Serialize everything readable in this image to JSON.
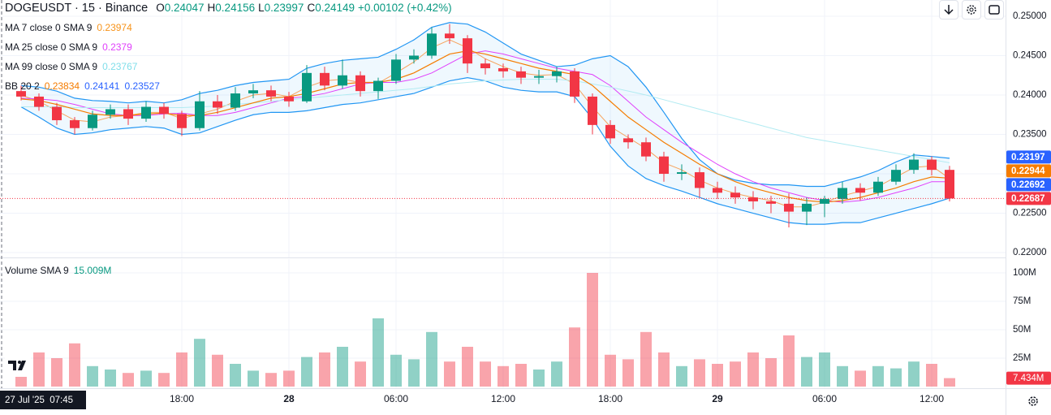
{
  "chart_data": {
    "type": "candlestick",
    "title": "DOGEUSDT · 15 · Binance",
    "header": [
      {
        "label": "O",
        "value": 0.24047
      },
      {
        "label": "H",
        "value": 0.24156
      },
      {
        "label": "L",
        "value": 0.23997
      },
      {
        "label": "C",
        "value": 0.24149
      }
    ],
    "change": "+0.00102 (+0.42%)",
    "crosshair_label": "27 Jul '25  07:45",
    "up_color": "#089981",
    "down_color": "#f23645",
    "grid": true,
    "categories": [
      null,
      null,
      null,
      null,
      null,
      null,
      null,
      null,
      null,
      "18:00",
      null,
      null,
      null,
      null,
      null,
      "28",
      null,
      null,
      null,
      null,
      null,
      "06:00",
      null,
      null,
      null,
      null,
      null,
      "12:00",
      null,
      null,
      null,
      null,
      null,
      "18:00",
      null,
      null,
      null,
      null,
      null,
      "29",
      null,
      null,
      null,
      null,
      null,
      "06:00",
      null,
      null,
      null,
      null,
      null,
      "12:00",
      null
    ],
    "open": [
      0.2405,
      0.2398,
      0.2385,
      0.2368,
      0.2358,
      0.2375,
      0.2382,
      0.237,
      0.2385,
      0.2376,
      0.2358,
      0.2392,
      0.2384,
      0.2402,
      0.2406,
      0.2398,
      0.2392,
      0.2428,
      0.2412,
      0.2425,
      0.2405,
      0.2418,
      0.2445,
      0.245,
      0.2478,
      0.2472,
      0.244,
      0.2434,
      0.243,
      0.2422,
      0.2424,
      0.243,
      0.2398,
      0.2362,
      0.2345,
      0.234,
      0.2322,
      0.23,
      0.2302,
      0.2282,
      0.2276,
      0.227,
      0.2265,
      0.2262,
      0.2252,
      0.2262,
      0.2268,
      0.2282,
      0.2276,
      0.229,
      0.2305,
      0.2318,
      0.2305
    ],
    "high": [
      0.2412,
      0.2402,
      0.239,
      0.2372,
      0.238,
      0.2388,
      0.2388,
      0.2392,
      0.239,
      0.238,
      0.2405,
      0.24,
      0.241,
      0.2414,
      0.2412,
      0.2404,
      0.2438,
      0.2436,
      0.2445,
      0.243,
      0.2422,
      0.2452,
      0.2458,
      0.2486,
      0.249,
      0.2476,
      0.2446,
      0.244,
      0.2436,
      0.2432,
      0.2436,
      0.2434,
      0.2402,
      0.2368,
      0.235,
      0.2346,
      0.2328,
      0.2312,
      0.2308,
      0.229,
      0.2284,
      0.2278,
      0.2272,
      0.2275,
      0.227,
      0.2272,
      0.229,
      0.2288,
      0.2296,
      0.2312,
      0.2326,
      0.2322,
      0.231
    ],
    "low": [
      0.2393,
      0.238,
      0.2362,
      0.235,
      0.2355,
      0.237,
      0.2362,
      0.2366,
      0.237,
      0.2348,
      0.2355,
      0.2376,
      0.238,
      0.2396,
      0.2392,
      0.2385,
      0.239,
      0.2406,
      0.2408,
      0.2398,
      0.2395,
      0.2414,
      0.244,
      0.2446,
      0.2465,
      0.2428,
      0.2426,
      0.2422,
      0.2414,
      0.2414,
      0.2416,
      0.239,
      0.235,
      0.2338,
      0.2332,
      0.2316,
      0.229,
      0.2292,
      0.227,
      0.2268,
      0.2262,
      0.2255,
      0.225,
      0.2232,
      0.2235,
      0.2245,
      0.2262,
      0.2266,
      0.2272,
      0.2286,
      0.23,
      0.2298,
      0.2265
    ],
    "close": [
      0.2398,
      0.2385,
      0.2368,
      0.2358,
      0.2375,
      0.2382,
      0.237,
      0.2385,
      0.2376,
      0.2358,
      0.2392,
      0.2384,
      0.2402,
      0.2406,
      0.2398,
      0.2392,
      0.2428,
      0.2412,
      0.2425,
      0.2405,
      0.2418,
      0.2445,
      0.245,
      0.2478,
      0.2472,
      0.244,
      0.2434,
      0.243,
      0.2422,
      0.2424,
      0.243,
      0.2398,
      0.2362,
      0.2345,
      0.234,
      0.2322,
      0.23,
      0.2302,
      0.2282,
      0.2276,
      0.227,
      0.2265,
      0.2262,
      0.2252,
      0.2262,
      0.2268,
      0.2282,
      0.2276,
      0.229,
      0.2305,
      0.2318,
      0.2305,
      0.22687
    ],
    "ylim": [
      0.21959,
      0.25206
    ],
    "yticks": [
      {
        "value": 0.22,
        "label": "0.22000"
      },
      {
        "value": 0.225,
        "label": "0.22500"
      },
      {
        "value": 0.23,
        "label": "0.23000"
      },
      {
        "value": 0.235,
        "label": "0.23500"
      },
      {
        "value": 0.24,
        "label": "0.24000"
      },
      {
        "value": 0.245,
        "label": "0.24500"
      },
      {
        "value": 0.25,
        "label": "0.25000"
      }
    ],
    "overlays": [
      {
        "name": "MA 7 close 0 SMA 9",
        "legend_value": 0.23974,
        "color": "#f7a35c",
        "legend_color": "#f7931a",
        "values": [
          0.24,
          0.2392,
          0.238,
          0.2368,
          0.2366,
          0.2372,
          0.2374,
          0.2378,
          0.2378,
          0.237,
          0.2376,
          0.2382,
          0.2392,
          0.24,
          0.2402,
          0.2398,
          0.241,
          0.2418,
          0.242,
          0.2416,
          0.2415,
          0.2428,
          0.2442,
          0.246,
          0.247,
          0.246,
          0.2446,
          0.2436,
          0.2428,
          0.2425,
          0.2426,
          0.2414,
          0.2385,
          0.236,
          0.2346,
          0.2332,
          0.2314,
          0.2305,
          0.2292,
          0.2282,
          0.2275,
          0.227,
          0.2266,
          0.2258,
          0.2258,
          0.2264,
          0.2272,
          0.2278,
          0.2284,
          0.2296,
          0.2308,
          0.231,
          0.2294
        ]
      },
      {
        "name": "MA 25 close 0 SMA 9",
        "legend_value": 0.2379,
        "color": "#e040fb",
        "legend_color": "#e040fb",
        "values": [
          0.2396,
          0.2395,
          0.2393,
          0.2388,
          0.2382,
          0.2376,
          0.2374,
          0.2374,
          0.2376,
          0.2377,
          0.2374,
          0.2374,
          0.2378,
          0.2384,
          0.239,
          0.2396,
          0.2398,
          0.2402,
          0.2408,
          0.2414,
          0.2416,
          0.2416,
          0.242,
          0.2428,
          0.244,
          0.2452,
          0.2456,
          0.2452,
          0.2446,
          0.244,
          0.2434,
          0.243,
          0.2426,
          0.2412,
          0.2392,
          0.2372,
          0.2356,
          0.234,
          0.2326,
          0.2312,
          0.23,
          0.229,
          0.2282,
          0.2276,
          0.227,
          0.2266,
          0.2264,
          0.2266,
          0.227,
          0.2276,
          0.2282,
          0.229,
          0.229
        ]
      },
      {
        "name": "MA 99 close 0 SMA 9",
        "legend_value": 0.23767,
        "color": "#b2ebf2",
        "legend_color": "#80deea",
        "values": [
          0.2385,
          0.2385,
          0.2385,
          0.2384,
          0.2384,
          0.2384,
          0.2384,
          0.2384,
          0.2384,
          0.2384,
          0.2385,
          0.2386,
          0.2388,
          0.239,
          0.2392,
          0.2394,
          0.2396,
          0.2398,
          0.24,
          0.2402,
          0.2404,
          0.2406,
          0.2408,
          0.2411,
          0.2414,
          0.2416,
          0.2418,
          0.2419,
          0.242,
          0.242,
          0.242,
          0.2418,
          0.2414,
          0.241,
          0.2405,
          0.24,
          0.2394,
          0.2388,
          0.2382,
          0.2376,
          0.237,
          0.2364,
          0.2358,
          0.2352,
          0.2346,
          0.2342,
          0.2338,
          0.2334,
          0.233,
          0.2326,
          0.2322,
          0.2318,
          0.2314
        ]
      }
    ],
    "bb": {
      "name": "BB 20 2",
      "legend_values": [
        0.23834,
        0.24141,
        0.23527
      ],
      "legend_colors": [
        "#f57c00",
        "#2962ff",
        "#2962ff"
      ],
      "color": "#2196f3",
      "basis_color": "#f57c00",
      "fill": "rgba(33,150,243,0.07)",
      "basis": [
        0.2395,
        0.2393,
        0.2388,
        0.2382,
        0.2376,
        0.2374,
        0.2374,
        0.2376,
        0.2377,
        0.2374,
        0.2374,
        0.2378,
        0.2384,
        0.239,
        0.2396,
        0.2398,
        0.2402,
        0.2408,
        0.2414,
        0.2416,
        0.2416,
        0.242,
        0.2428,
        0.244,
        0.2452,
        0.2456,
        0.2452,
        0.2446,
        0.244,
        0.2434,
        0.243,
        0.2426,
        0.2412,
        0.2392,
        0.2372,
        0.2356,
        0.234,
        0.2326,
        0.2312,
        0.23,
        0.229,
        0.2282,
        0.2276,
        0.227,
        0.2266,
        0.2264,
        0.2266,
        0.227,
        0.2276,
        0.2282,
        0.229,
        0.2296,
        0.22944
      ],
      "upper": [
        0.2412,
        0.241,
        0.2405,
        0.2396,
        0.2393,
        0.2392,
        0.239,
        0.2392,
        0.239,
        0.2394,
        0.2402,
        0.2406,
        0.2412,
        0.2416,
        0.2418,
        0.242,
        0.2434,
        0.244,
        0.2444,
        0.2446,
        0.2448,
        0.2458,
        0.247,
        0.2486,
        0.2492,
        0.249,
        0.248,
        0.2466,
        0.2452,
        0.2444,
        0.2436,
        0.2438,
        0.2446,
        0.245,
        0.2436,
        0.241,
        0.2378,
        0.2345,
        0.2318,
        0.23,
        0.2292,
        0.2288,
        0.2286,
        0.2286,
        0.2284,
        0.2284,
        0.229,
        0.2296,
        0.2304,
        0.2315,
        0.2324,
        0.2322,
        0.23197
      ],
      "lower": [
        0.2385,
        0.2372,
        0.2358,
        0.235,
        0.2352,
        0.2356,
        0.2358,
        0.236,
        0.2358,
        0.235,
        0.2352,
        0.236,
        0.2368,
        0.2375,
        0.2378,
        0.2378,
        0.238,
        0.2384,
        0.2388,
        0.239,
        0.2394,
        0.2398,
        0.2402,
        0.241,
        0.2418,
        0.2422,
        0.2418,
        0.241,
        0.2406,
        0.2404,
        0.2404,
        0.2398,
        0.237,
        0.2335,
        0.231,
        0.2294,
        0.2285,
        0.2278,
        0.227,
        0.2262,
        0.2256,
        0.225,
        0.2244,
        0.2238,
        0.2236,
        0.2236,
        0.2238,
        0.2238,
        0.2244,
        0.225,
        0.2256,
        0.2262,
        0.22692
      ]
    },
    "volume": {
      "name": "Volume SMA 9",
      "sma_label": "15.009M",
      "last_label": "7.434M",
      "up_color": "rgba(8,153,129,0.45)",
      "down_color": "rgba(242,54,69,0.45)",
      "values": [
        20000000,
        30000000,
        25000000,
        38000000,
        18000000,
        15000000,
        12000000,
        14000000,
        12000000,
        30000000,
        42000000,
        28000000,
        20000000,
        14000000,
        12000000,
        14000000,
        26000000,
        30000000,
        35000000,
        22000000,
        60000000,
        28000000,
        24000000,
        48000000,
        22000000,
        35000000,
        22000000,
        18000000,
        20000000,
        15000000,
        22000000,
        52000000,
        100000000,
        28000000,
        24000000,
        48000000,
        30000000,
        18000000,
        24000000,
        20000000,
        22000000,
        30000000,
        25000000,
        45000000,
        26000000,
        30000000,
        18000000,
        14000000,
        18000000,
        16000000,
        22000000,
        20000000,
        7434000
      ],
      "ylim": [
        0,
        111430000
      ],
      "yticks": [
        {
          "value": 25000000,
          "label": "25M"
        },
        {
          "value": 50000000,
          "label": "50M"
        },
        {
          "value": 75000000,
          "label": "75M"
        },
        {
          "value": 100000000,
          "label": "100M"
        }
      ]
    }
  }
}
